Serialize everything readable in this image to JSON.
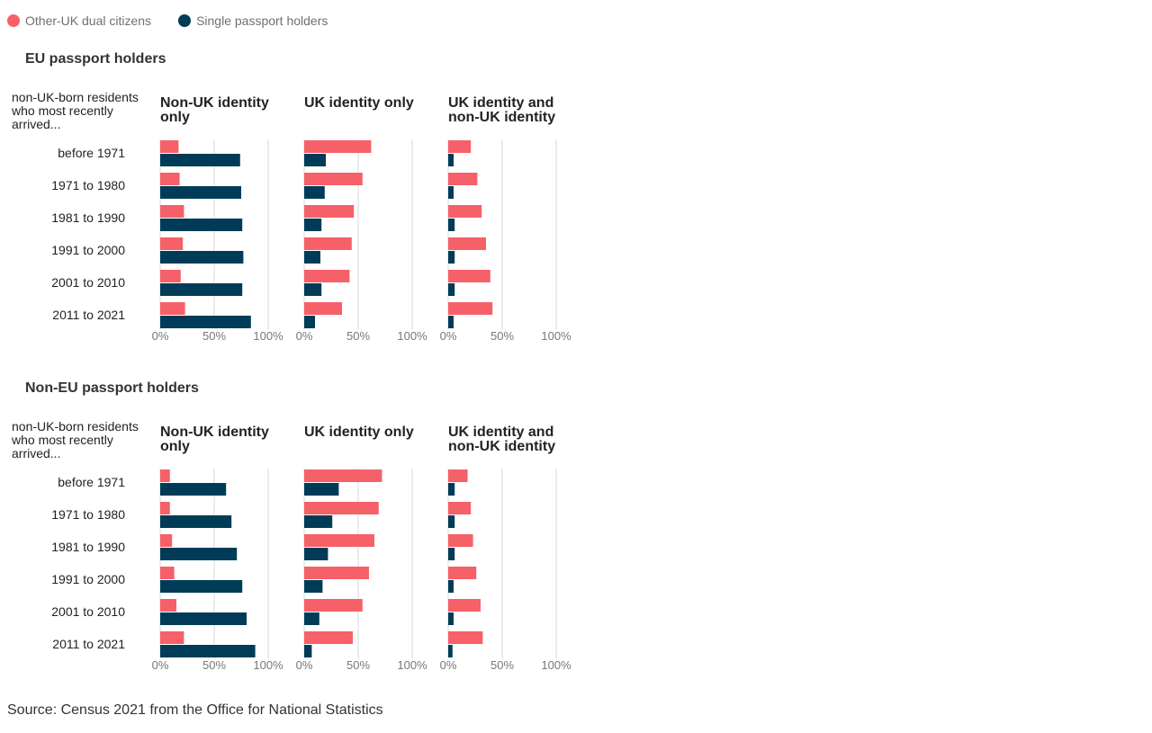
{
  "legend": {
    "items": [
      {
        "label": "Other-UK dual citizens",
        "color": "#f66068"
      },
      {
        "label": "Single passport holders",
        "color": "#003c57"
      }
    ]
  },
  "row_header": "non-UK-born residents who most recently arrived...",
  "source": "Source: Census 2021 from the Office for National Statistics",
  "chart_data": {
    "type": "bar",
    "orientation": "horizontal",
    "categories": [
      "before 1971",
      "1971 to 1980",
      "1981 to 1990",
      "1991 to 2000",
      "2001 to 2010",
      "2011 to 2021"
    ],
    "columns": [
      "Non-UK identity only",
      "UK identity only",
      "UK identity and non-UK identity"
    ],
    "xlim": [
      0,
      100
    ],
    "xticks": [
      "0%",
      "50%",
      "100%"
    ],
    "grid": true,
    "legend_position": "top-left",
    "groups": [
      {
        "title": "EU passport holders",
        "panels": [
          {
            "column": "Non-UK identity only",
            "series": [
              {
                "name": "Other-UK dual citizens",
                "values": [
                  17,
                  18,
                  22,
                  21,
                  19,
                  23
                ]
              },
              {
                "name": "Single passport holders",
                "values": [
                  74,
                  75,
                  76,
                  77,
                  76,
                  84
                ]
              }
            ]
          },
          {
            "column": "UK identity only",
            "series": [
              {
                "name": "Other-UK dual citizens",
                "values": [
                  62,
                  54,
                  46,
                  44,
                  42,
                  35
                ]
              },
              {
                "name": "Single passport holders",
                "values": [
                  20,
                  19,
                  16,
                  15,
                  16,
                  10
                ]
              }
            ]
          },
          {
            "column": "UK identity and non-UK identity",
            "series": [
              {
                "name": "Other-UK dual citizens",
                "values": [
                  21,
                  27,
                  31,
                  35,
                  39,
                  41
                ]
              },
              {
                "name": "Single passport holders",
                "values": [
                  5,
                  5,
                  6,
                  6,
                  6,
                  5
                ]
              }
            ]
          }
        ]
      },
      {
        "title": "Non-EU passport holders",
        "panels": [
          {
            "column": "Non-UK identity only",
            "series": [
              {
                "name": "Other-UK dual citizens",
                "values": [
                  9,
                  9,
                  11,
                  13,
                  15,
                  22
                ]
              },
              {
                "name": "Single passport holders",
                "values": [
                  61,
                  66,
                  71,
                  76,
                  80,
                  88
                ]
              }
            ]
          },
          {
            "column": "UK identity only",
            "series": [
              {
                "name": "Other-UK dual citizens",
                "values": [
                  72,
                  69,
                  65,
                  60,
                  54,
                  45
                ]
              },
              {
                "name": "Single passport holders",
                "values": [
                  32,
                  26,
                  22,
                  17,
                  14,
                  7
                ]
              }
            ]
          },
          {
            "column": "UK identity and non-UK identity",
            "series": [
              {
                "name": "Other-UK dual citizens",
                "values": [
                  18,
                  21,
                  23,
                  26,
                  30,
                  32
                ]
              },
              {
                "name": "Single passport holders",
                "values": [
                  6,
                  6,
                  6,
                  5,
                  5,
                  4
                ]
              }
            ]
          }
        ]
      }
    ]
  }
}
